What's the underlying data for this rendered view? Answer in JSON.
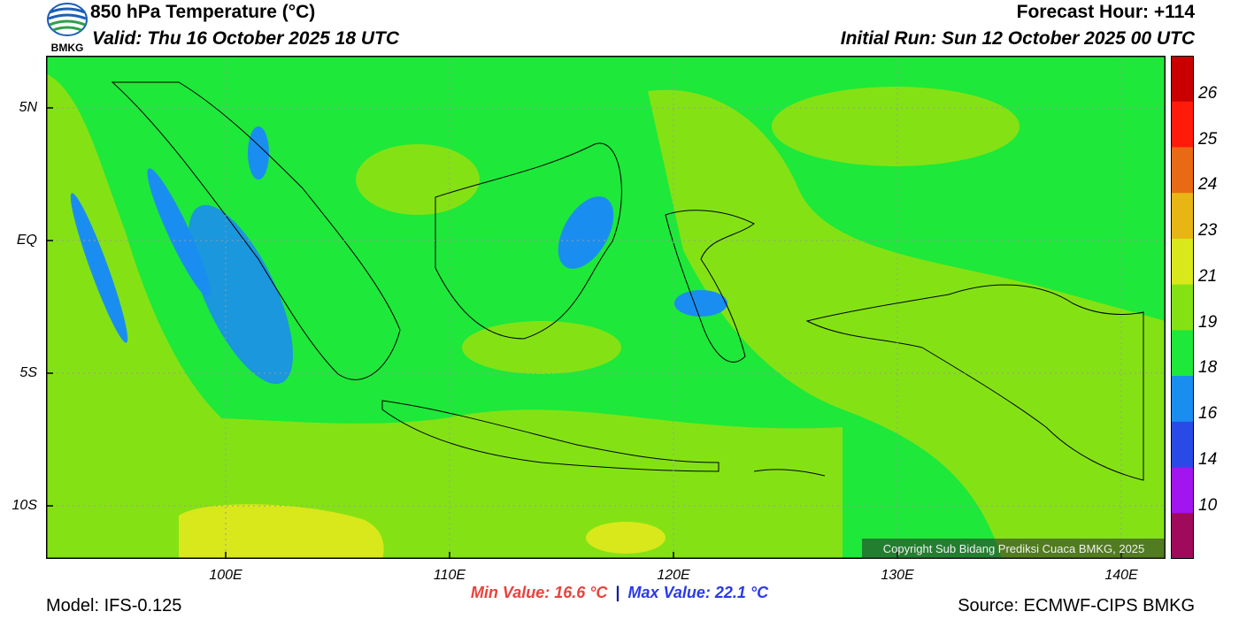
{
  "header": {
    "title": "850 hPa Temperature (°C)",
    "valid": "Valid: Thu 16 October 2025 18 UTC",
    "forecast_hour": "Forecast Hour: +114",
    "initial_run": "Initial Run: Sun 12 October 2025 00 UTC",
    "logo_text": "BMKG"
  },
  "map": {
    "lat_labels": [
      "5N",
      "EQ",
      "5S",
      "10S"
    ],
    "lon_labels": [
      "100E",
      "110E",
      "120E",
      "130E",
      "140E"
    ],
    "lat_values": [
      5,
      0,
      -5,
      -10
    ],
    "lon_values": [
      100,
      110,
      120,
      130,
      140
    ],
    "lon_range": [
      92,
      142
    ],
    "lat_range": [
      -12,
      7
    ],
    "dominant_fill": "#1ee83a",
    "copyright": "Copyright Sub Bidang Prediksi Cuaca BMKG, 2025"
  },
  "stats": {
    "min": "Min Value: 16.6 °C",
    "separator": "|",
    "max": "Max Value: 22.1 °C"
  },
  "footer": {
    "model": "Model: IFS-0.125",
    "source": "Source: ECMWF-CIPS BMKG"
  },
  "colorbar": {
    "labels": [
      "26",
      "25",
      "24",
      "23",
      "21",
      "19",
      "18",
      "16",
      "14",
      "10"
    ],
    "colors": [
      "#c80000",
      "#ff1a0a",
      "#e96a14",
      "#e8b614",
      "#d9e81a",
      "#84e214",
      "#1ee83a",
      "#1a8ef0",
      "#2a4ae8",
      "#a214f0",
      "#a00a5a"
    ]
  }
}
